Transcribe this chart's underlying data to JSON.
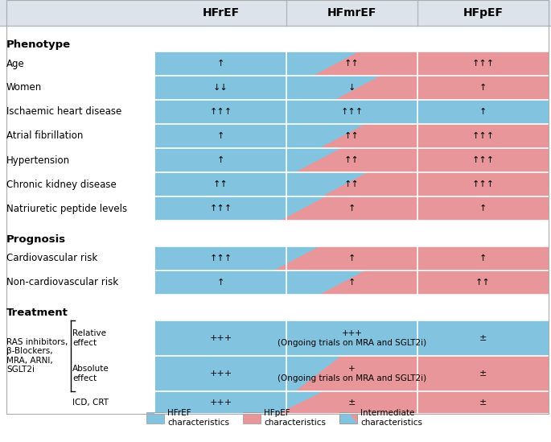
{
  "col_headers": [
    "HFrEF",
    "HFmrEF",
    "HFpEF"
  ],
  "col_header_bg": "#dce3ea",
  "blue_color": "#82c4e0",
  "pink_color": "#e8969a",
  "sections": [
    {
      "section_label": "Phenotype",
      "rows": [
        {
          "label": "Age",
          "c1": "↑",
          "c2": "↑↑",
          "c3": "↑↑↑",
          "diag": 0.55
        },
        {
          "label": "Women",
          "c1": "↓↓",
          "c2": "↓",
          "c3": "↑",
          "diag": 0.72
        },
        {
          "label": "Ischaemic heart disease",
          "c1": "↑↑↑",
          "c2": "↑↑↑",
          "c3": "↑",
          "diag": 1.0
        },
        {
          "label": "Atrial fibrillation",
          "c1": "↑",
          "c2": "↑↑",
          "c3": "↑↑↑",
          "diag": 0.6
        },
        {
          "label": "Hypertension",
          "c1": "↑",
          "c2": "↑↑",
          "c3": "↑↑↑",
          "diag": 0.42
        },
        {
          "label": "Chronic kidney disease",
          "c1": "↑↑",
          "c2": "↑↑",
          "c3": "↑↑↑",
          "diag": 0.62
        },
        {
          "label": "Natriuretic peptide levels",
          "c1": "↑↑↑",
          "c2": "↑",
          "c3": "↑",
          "diag": 0.3
        }
      ]
    },
    {
      "section_label": "Prognosis",
      "rows": [
        {
          "label": "Cardiovascular risk",
          "c1": "↑↑↑",
          "c2": "↑",
          "c3": "↑",
          "diag": 0.25
        },
        {
          "label": "Non-cardiovascular risk",
          "c1": "↑",
          "c2": "↑",
          "c3": "↑↑",
          "diag": 0.6
        }
      ]
    },
    {
      "section_label": "Treatment",
      "treatment_left_label": "RAS inhibitors,\nβ-Blockers,\nMRA, ARNI,\nSGLT2i",
      "rows": [
        {
          "label": "Relative\neffect",
          "c1": "+++",
          "c2": "+++\n(Ongoing trials on MRA and SGLT2i)",
          "c3": "±",
          "diag": 1.0,
          "tall": true
        },
        {
          "label": "Absolute\neffect",
          "c1": "+++",
          "c2": "+\n(Ongoing trials on MRA and SGLT2i)",
          "c3": "±",
          "diag": 0.42,
          "tall": true
        },
        {
          "label": "ICD, CRT",
          "c1": "+++",
          "c2": "±",
          "c3": "±",
          "diag": 0.28,
          "tall": false
        }
      ]
    }
  ],
  "legend": [
    {
      "color": "#82c4e0",
      "label": "HFrEF\ncharacteristics"
    },
    {
      "color": "#e8969a",
      "label": "HFpEF\ncharacteristics"
    },
    {
      "color": "intermediate",
      "label": "Intermediate\ncharacteristics"
    }
  ],
  "fig_w": 6.85,
  "fig_h": 5.49,
  "dpi": 100
}
